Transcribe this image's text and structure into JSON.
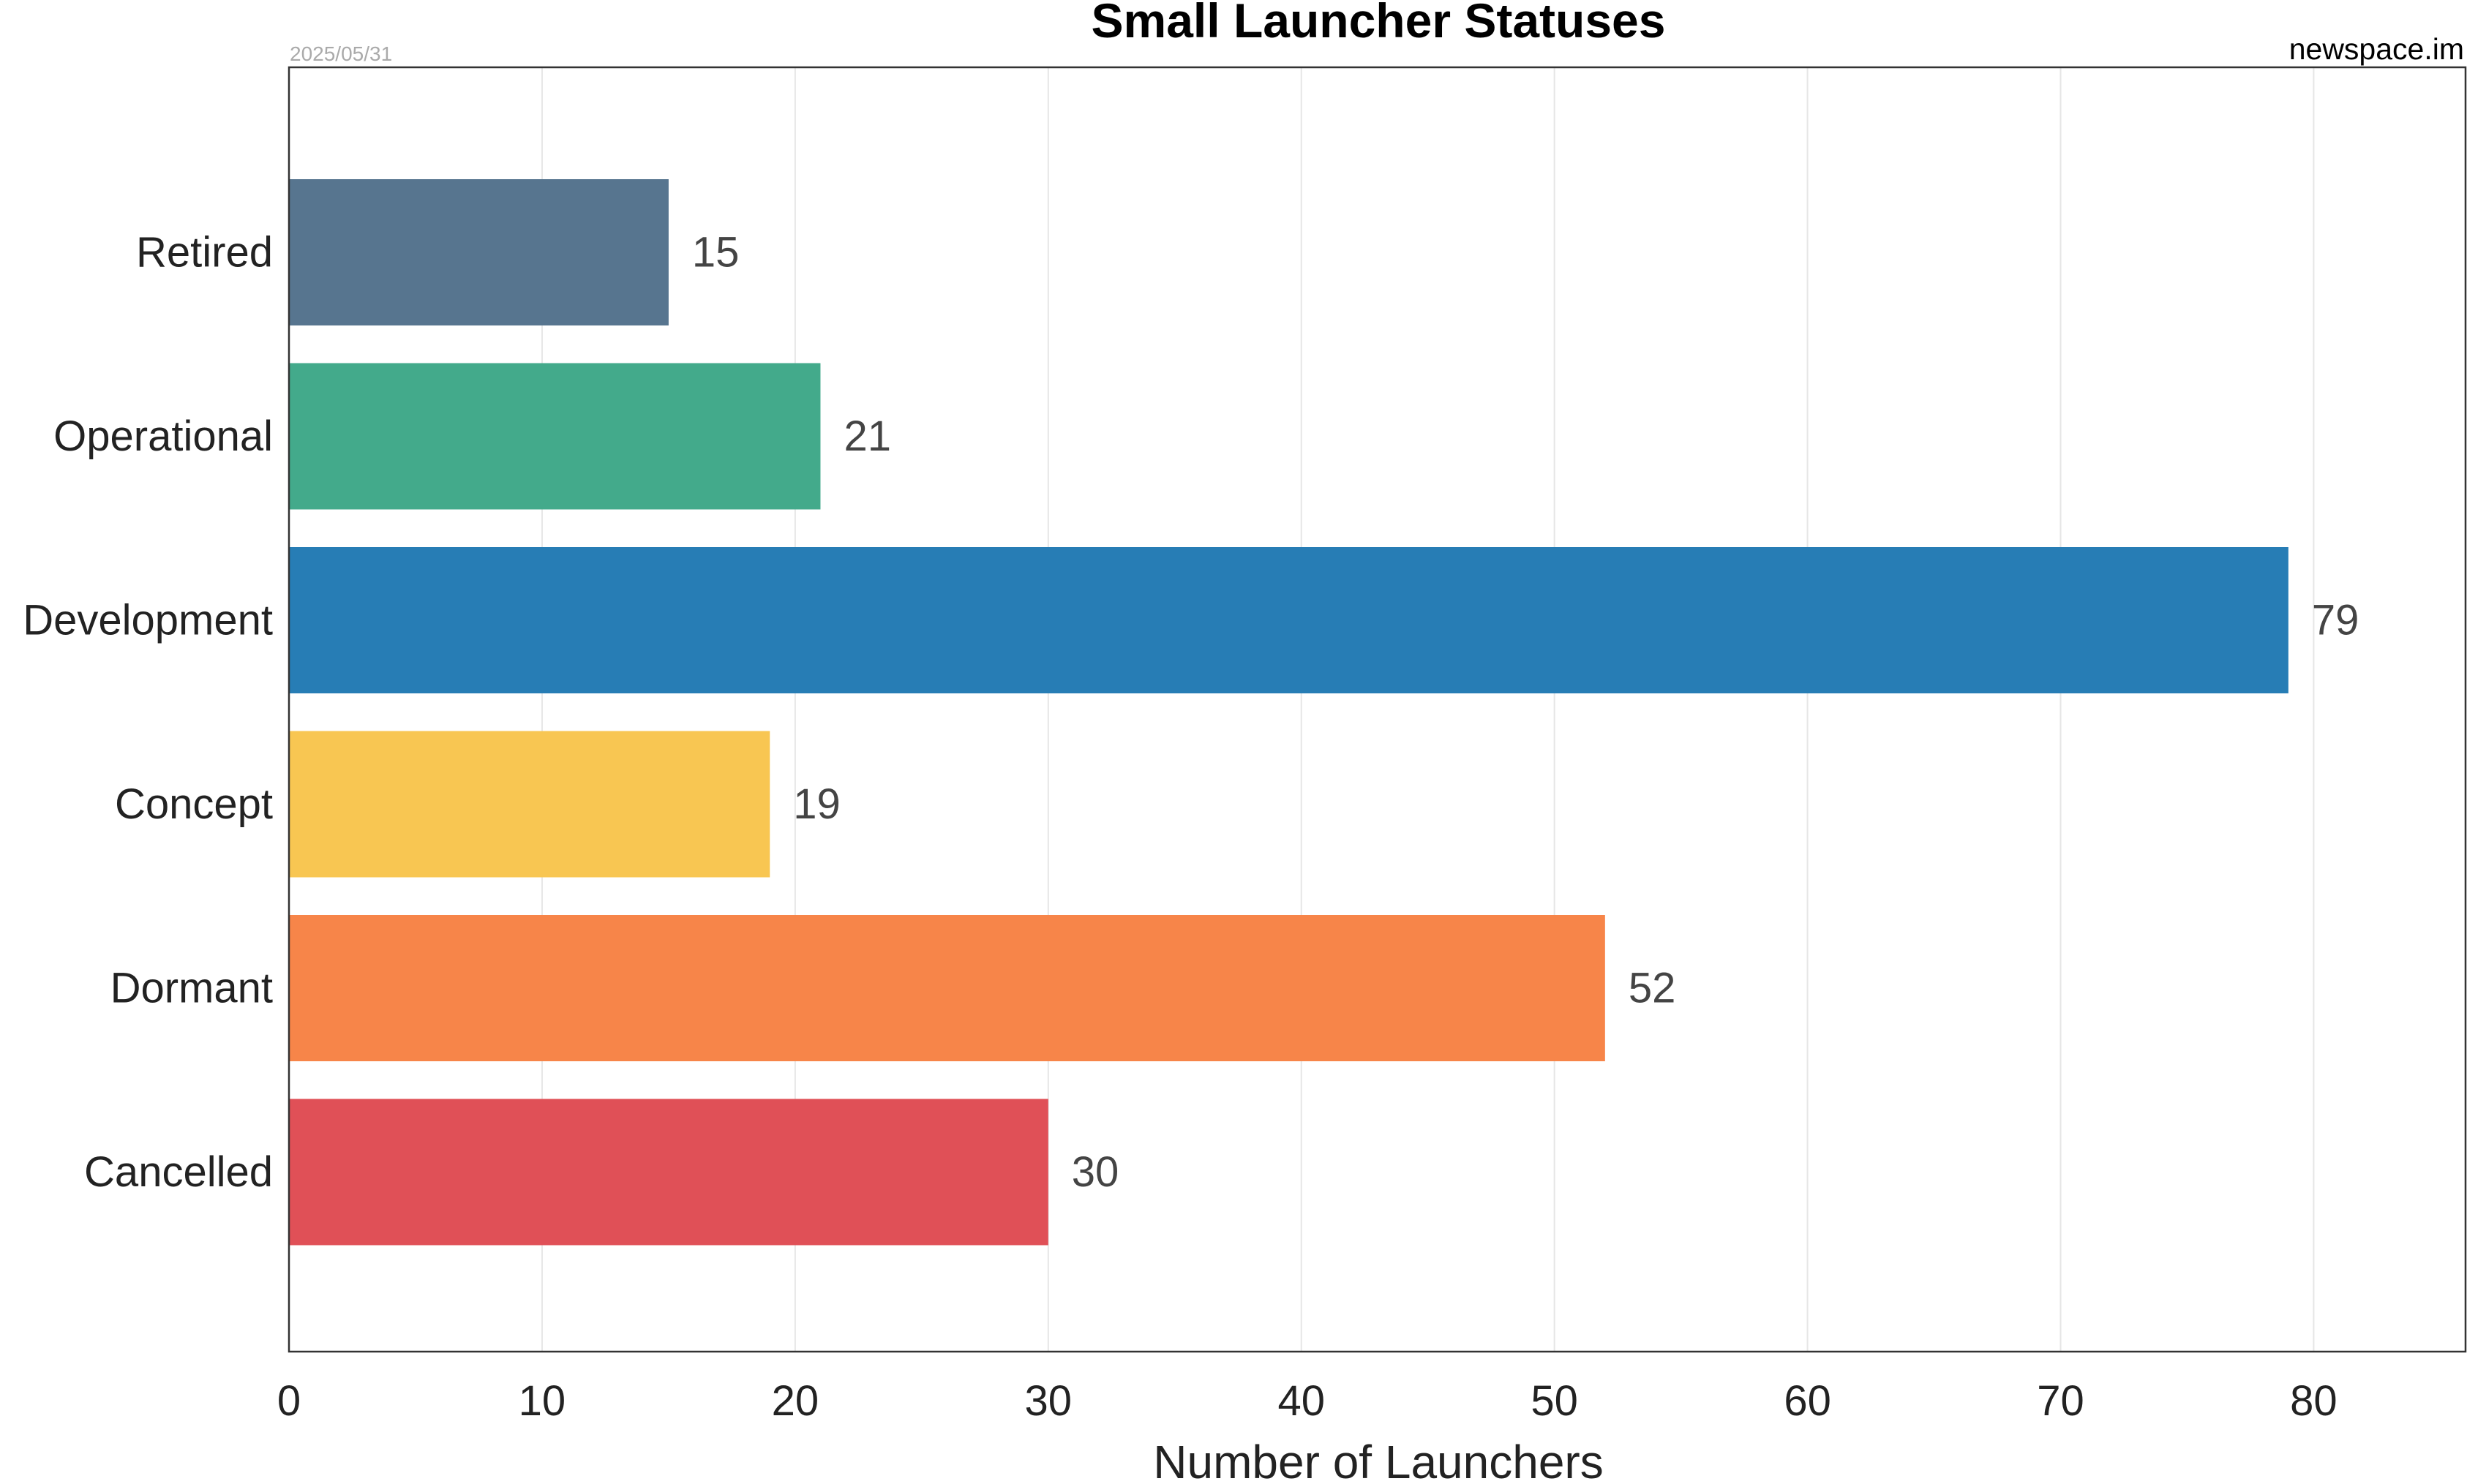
{
  "chart_data": {
    "type": "bar",
    "orientation": "horizontal",
    "title": "Small Launcher Statuses",
    "date": "2025/05/31",
    "source": "newspace.im",
    "xlabel": "Number of Launchers",
    "ylabel": "",
    "categories": [
      "Retired",
      "Operational",
      "Development",
      "Concept",
      "Dormant",
      "Cancelled"
    ],
    "values": [
      15,
      21,
      79,
      19,
      52,
      30
    ],
    "colors": [
      "#57758f",
      "#43aa8b",
      "#277db5",
      "#f8c652",
      "#f78549",
      "#e05057"
    ],
    "xlim": [
      0,
      86
    ],
    "xticks": [
      0,
      10,
      20,
      30,
      40,
      50,
      60,
      70,
      80
    ],
    "grid": "vertical"
  }
}
